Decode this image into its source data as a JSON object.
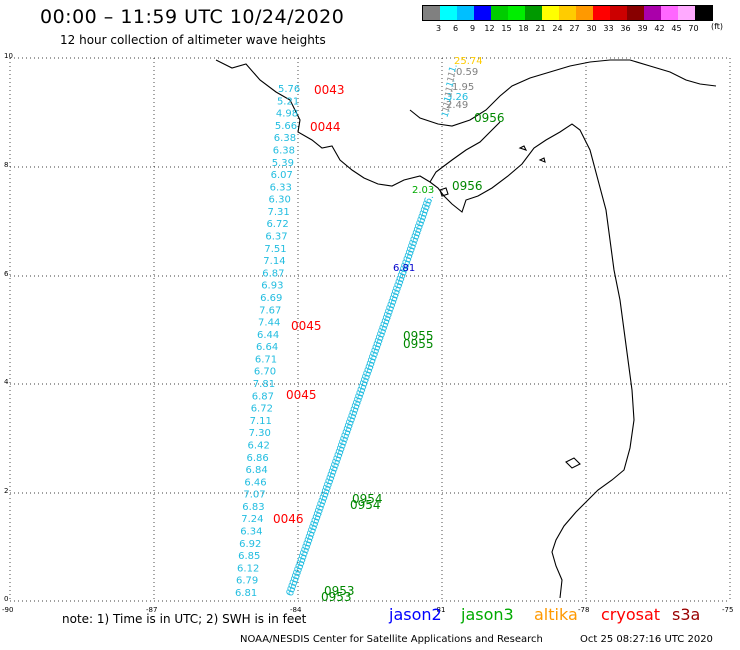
{
  "header": {
    "title": "00:00 – 11:59 UTC 10/24/2020",
    "subtitle": "12 hour collection of altimeter wave heights"
  },
  "legend": {
    "ticks": [
      "3",
      "6",
      "9",
      "12",
      "15",
      "18",
      "21",
      "24",
      "27",
      "30",
      "33",
      "36",
      "39",
      "42",
      "45",
      "70"
    ],
    "unit": "(ft)",
    "colors": [
      "#808080",
      "#00ffff",
      "#00bfff",
      "#0000ff",
      "#00cc00",
      "#00ee00",
      "#009900",
      "#ffff00",
      "#ffcc00",
      "#ff9900",
      "#ff0000",
      "#cc0000",
      "#880000",
      "#aa00aa",
      "#ff66ff",
      "#ffaaff",
      "#000000"
    ]
  },
  "axes": {
    "y_ticks": [
      "10",
      "8",
      "6",
      "4",
      "2",
      "0"
    ],
    "x_ticks": [
      "-90",
      "-87",
      "-84",
      "-81",
      "-78",
      "-75"
    ]
  },
  "left_track_values": [
    "5.76",
    "5.21",
    "4.98",
    "5.66",
    "6.38",
    "6.38",
    "5.39",
    "6.07",
    "6.33",
    "6.30",
    "7.31",
    "6.72",
    "6.37",
    "7.51",
    "7.14",
    "6.87",
    "6.93",
    "6.69",
    "7.67",
    "7.44",
    "6.44",
    "6.64",
    "6.71",
    "6.70",
    "7.81",
    "6.87",
    "6.72",
    "7.11",
    "7.30",
    "6.42",
    "6.86",
    "6.84",
    "6.46",
    "7.07",
    "6.83",
    "7.24",
    "6.34",
    "6.92",
    "6.85",
    "6.12",
    "6.79",
    "6.81"
  ],
  "time_labels": {
    "cryosat": [
      "0043",
      "0044",
      "0045",
      "0045",
      "0046"
    ],
    "jason3": [
      "0956",
      "0956",
      "0955",
      "0955",
      "0954",
      "0954",
      "0953",
      "0953"
    ]
  },
  "gulf_values": [
    "25.74",
    "0.59",
    "1.95",
    "3.26",
    "2.49"
  ],
  "diag_marker": "6.81",
  "island_label": "2.03",
  "note": "note: 1) Time is in UTC; 2) SWH is in feet",
  "satellites": [
    "jason2",
    "jason3",
    "altika",
    "cryosat",
    "s3a"
  ],
  "satellite_colors": [
    "#0000ff",
    "#00aa00",
    "#ff9900",
    "#ff0000",
    "#990000"
  ],
  "footer": {
    "left": "NOAA/NESDIS Center for Satellite Applications and Research",
    "right": "Oct 25 08:27:16 UTC 2020"
  }
}
